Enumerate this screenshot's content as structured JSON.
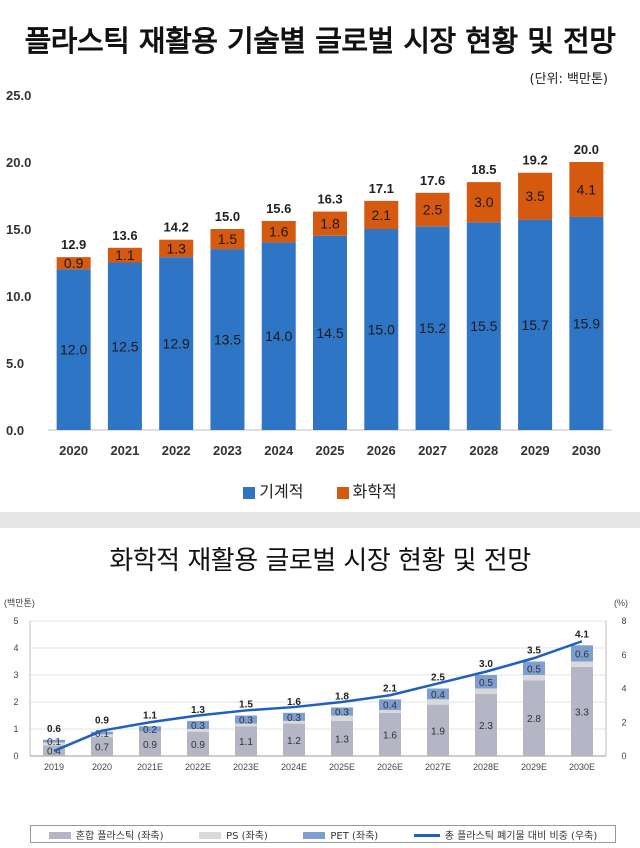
{
  "chart1_title": "플라스틱 재활용 기술별 글로벌 시장 현황 및 전망",
  "chart1_unit": "(단위: 백만톤)",
  "chart2_title": "화학적 재활용 글로벌 시장 현황 및 전망",
  "colors": {
    "mechanical": "#2e75c6",
    "chemical": "#d55a10",
    "mixed": "#b4b6c6",
    "ps": "#d9d9d9",
    "pet": "#7f9ed0",
    "share_line": "#1f5fbf"
  },
  "chart_data": [
    {
      "type": "bar",
      "stacked": true,
      "title": "플라스틱 재활용 기술별 글로벌 시장 현황 및 전망",
      "unit": "(단위: 백만톤)",
      "categories": [
        "2020",
        "2021",
        "2022",
        "2023",
        "2024",
        "2025",
        "2026",
        "2027",
        "2028",
        "2029",
        "2030"
      ],
      "series": [
        {
          "name": "기계적",
          "values": [
            12.0,
            12.5,
            12.9,
            13.5,
            14.0,
            14.5,
            15.0,
            15.2,
            15.5,
            15.7,
            15.9
          ]
        },
        {
          "name": "화학적",
          "values": [
            0.9,
            1.1,
            1.3,
            1.5,
            1.6,
            1.8,
            2.1,
            2.5,
            3.0,
            3.5,
            4.1
          ]
        }
      ],
      "value_labels": [
        [
          "12.0",
          "12.5",
          "12.9",
          "13.5",
          "14.0",
          "14.5",
          "15.0",
          "15.2",
          "15.5",
          "15.7",
          "15.9"
        ],
        [
          "0.9",
          "1.1",
          "1.3",
          "1.5",
          "1.6",
          "1.8",
          "2.1",
          "2.5",
          "3.0",
          "3.5",
          "4.1"
        ]
      ],
      "totals": [
        "12.9",
        "13.6",
        "14.2",
        "15.0",
        "15.6",
        "16.3",
        "17.1",
        "17.6",
        "18.5",
        "19.2",
        "20.0"
      ],
      "ylim": [
        0,
        25
      ],
      "yticks": [
        "0.0",
        "5.0",
        "10.0",
        "15.0",
        "20.0",
        "25.0"
      ],
      "grid": false,
      "legend": "bottom"
    },
    {
      "type": "bar",
      "stacked": true,
      "title": "화학적 재활용 글로벌 시장 현황 및 전망",
      "categories": [
        "2019",
        "2020",
        "2021E",
        "2022E",
        "2023E",
        "2024E",
        "2025E",
        "2026E",
        "2027E",
        "2028E",
        "2029E",
        "2030E"
      ],
      "series": [
        {
          "name": "혼합 플라스틱 (좌축)",
          "values": [
            0.4,
            0.7,
            0.9,
            0.9,
            1.1,
            1.2,
            1.3,
            1.6,
            1.9,
            2.3,
            2.8,
            3.3
          ]
        },
        {
          "name": "PS (좌축)",
          "values": [
            0.1,
            0.1,
            0.0,
            0.1,
            0.1,
            0.1,
            0.2,
            0.1,
            0.2,
            0.2,
            0.2,
            0.2
          ]
        },
        {
          "name": "PET (좌축)",
          "values": [
            0.1,
            0.1,
            0.2,
            0.3,
            0.3,
            0.3,
            0.3,
            0.4,
            0.4,
            0.5,
            0.5,
            0.6
          ]
        },
        {
          "name": "총 플라스틱 폐기물 대비 비중 (우축)",
          "type": "line",
          "axis": "right",
          "values": [
            0.3,
            1.5,
            2.0,
            2.4,
            2.7,
            2.9,
            3.2,
            3.6,
            4.3,
            5.0,
            5.8,
            6.8
          ]
        }
      ],
      "bottom_labels": [
        "0.4",
        "0.7",
        "0.9",
        "0.9",
        "1.1",
        "1.2",
        "1.3",
        "1.6",
        "1.9",
        "2.3",
        "2.8",
        "3.3"
      ],
      "pet_labels": [
        "0.1",
        "0.1",
        "0.2",
        "0.3",
        "0.3",
        "0.3",
        "0.3",
        "0.4",
        "0.4",
        "0.5",
        "0.5",
        "0.6"
      ],
      "totals": [
        "0.6",
        "0.9",
        "1.1",
        "1.3",
        "1.5",
        "1.6",
        "1.8",
        "2.1",
        "2.5",
        "3.0",
        "3.5",
        "4.1"
      ],
      "ylabel_left": "(백만톤)",
      "ylabel_right": "(%)",
      "ylim_left": [
        0,
        5
      ],
      "ylim_right": [
        0,
        8
      ],
      "yticks_left": [
        "0",
        "1",
        "2",
        "3",
        "4",
        "5"
      ],
      "yticks_right": [
        "0",
        "2",
        "4",
        "6",
        "8"
      ],
      "grid": true,
      "legend": "bottom"
    }
  ]
}
